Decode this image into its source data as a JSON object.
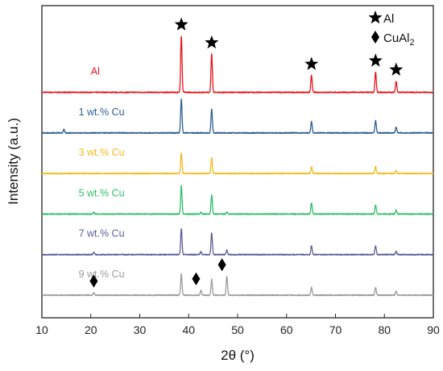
{
  "chart_data": {
    "type": "line",
    "xlabel": "2θ (°)",
    "ylabel": "Intensity (a.u.)",
    "xlim": [
      10,
      90
    ],
    "x_ticks": [
      10,
      20,
      30,
      40,
      50,
      60,
      70,
      80,
      90
    ],
    "y_ticks_shown": false,
    "grid": false,
    "legend": {
      "placement": "top-right",
      "entries": [
        {
          "marker": "star",
          "label": "Al"
        },
        {
          "marker": "diamond",
          "label": "CuAl",
          "label_subscript": "2"
        }
      ]
    },
    "series": [
      {
        "label": "Al",
        "color": "#e8141c",
        "baseline": 6,
        "peaks": [
          {
            "x": 38.5,
            "h": 5.0
          },
          {
            "x": 44.7,
            "h": 3.4
          },
          {
            "x": 65.1,
            "h": 1.5
          },
          {
            "x": 78.2,
            "h": 1.8
          },
          {
            "x": 82.4,
            "h": 1.0
          }
        ]
      },
      {
        "label": "1 wt.% Cu",
        "color": "#2e5f95",
        "baseline": 5,
        "peaks": [
          {
            "x": 14.5,
            "h": 0.3
          },
          {
            "x": 38.5,
            "h": 3.0
          },
          {
            "x": 44.7,
            "h": 2.1
          },
          {
            "x": 65.1,
            "h": 1.0
          },
          {
            "x": 78.2,
            "h": 1.1
          },
          {
            "x": 82.4,
            "h": 0.5
          }
        ]
      },
      {
        "label": "3 wt.% Cu",
        "color": "#f2bb1a",
        "baseline": 4,
        "peaks": [
          {
            "x": 38.5,
            "h": 1.8
          },
          {
            "x": 44.7,
            "h": 1.4
          },
          {
            "x": 65.1,
            "h": 0.6
          },
          {
            "x": 78.2,
            "h": 0.6
          },
          {
            "x": 82.4,
            "h": 0.25
          }
        ]
      },
      {
        "label": "5 wt.% Cu",
        "color": "#2fbf6a",
        "baseline": 3,
        "peaks": [
          {
            "x": 20.6,
            "h": 0.15
          },
          {
            "x": 38.5,
            "h": 2.5
          },
          {
            "x": 42.5,
            "h": 0.15
          },
          {
            "x": 44.7,
            "h": 1.7
          },
          {
            "x": 47.8,
            "h": 0.2
          },
          {
            "x": 65.1,
            "h": 1.0
          },
          {
            "x": 78.2,
            "h": 0.8
          },
          {
            "x": 82.4,
            "h": 0.35
          }
        ]
      },
      {
        "label": "7 wt.% Cu",
        "color": "#5c5d98",
        "baseline": 2,
        "peaks": [
          {
            "x": 20.6,
            "h": 0.2
          },
          {
            "x": 38.5,
            "h": 2.3
          },
          {
            "x": 42.5,
            "h": 0.25
          },
          {
            "x": 44.7,
            "h": 1.9
          },
          {
            "x": 47.8,
            "h": 0.4
          },
          {
            "x": 65.1,
            "h": 0.8
          },
          {
            "x": 78.2,
            "h": 0.8
          },
          {
            "x": 82.4,
            "h": 0.3
          }
        ]
      },
      {
        "label": "9 wt.% Cu",
        "color": "#9c9c9c",
        "baseline": 1,
        "peaks": [
          {
            "x": 20.6,
            "h": 0.25
          },
          {
            "x": 38.5,
            "h": 1.9
          },
          {
            "x": 42.5,
            "h": 0.45
          },
          {
            "x": 44.7,
            "h": 1.4
          },
          {
            "x": 47.8,
            "h": 1.7
          },
          {
            "x": 65.1,
            "h": 0.7
          },
          {
            "x": 78.2,
            "h": 0.7
          },
          {
            "x": 82.4,
            "h": 0.35
          }
        ]
      }
    ],
    "annotations": [
      {
        "marker": "star",
        "phase": "Al",
        "x": [
          38.5,
          44.7,
          65.1,
          78.2,
          82.4
        ]
      },
      {
        "marker": "diamond",
        "phase": "CuAl2",
        "x": [
          20.6,
          42.5,
          47.8
        ]
      }
    ]
  }
}
